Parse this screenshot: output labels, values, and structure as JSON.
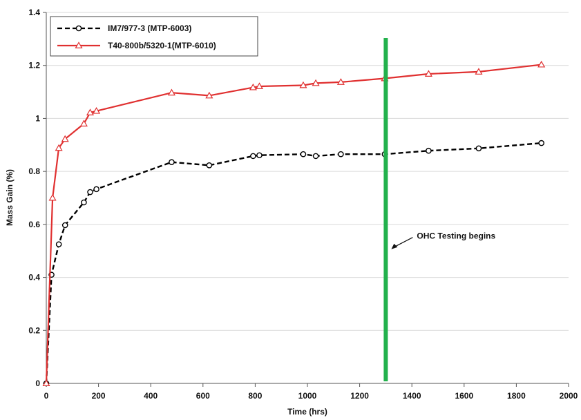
{
  "chart_data": {
    "type": "line",
    "xlabel": "Time (hrs)",
    "ylabel": "Mass Gain (%)",
    "xlim": [
      0,
      2000
    ],
    "ylim": [
      0,
      1.4
    ],
    "x_ticks": [
      0,
      200,
      400,
      600,
      800,
      1000,
      1200,
      1400,
      1600,
      1800,
      2000
    ],
    "y_ticks": [
      0,
      0.2,
      0.4,
      0.6,
      0.8,
      1,
      1.2,
      1.4
    ],
    "x_tick_labels": [
      "0",
      "200",
      "400",
      "600",
      "800",
      "1000",
      "1200",
      "1400",
      "1600",
      "1800",
      "2000"
    ],
    "y_tick_labels": [
      "0",
      "0.2",
      "0.4",
      "0.6",
      "0.8",
      "1",
      "1.2",
      "1.4"
    ],
    "grid": "horizontal",
    "legend_position": "top-left",
    "series": [
      {
        "name": "IM7/977-3 (MTP-6003)",
        "color": "#000000",
        "line_style": "dashed",
        "marker": "circle",
        "points": [
          [
            0,
            0
          ],
          [
            20,
            0.41
          ],
          [
            48,
            0.525
          ],
          [
            72,
            0.597
          ],
          [
            144,
            0.683
          ],
          [
            168,
            0.722
          ],
          [
            192,
            0.733
          ],
          [
            480,
            0.835
          ],
          [
            624,
            0.823
          ],
          [
            792,
            0.858
          ],
          [
            816,
            0.861
          ],
          [
            984,
            0.865
          ],
          [
            1032,
            0.858
          ],
          [
            1128,
            0.865
          ],
          [
            1296,
            0.865
          ],
          [
            1464,
            0.878
          ],
          [
            1656,
            0.887
          ],
          [
            1896,
            0.907
          ]
        ]
      },
      {
        "name": "T40-800b/5320-1(MTP-6010)",
        "color": "#e03030",
        "line_style": "solid",
        "marker": "triangle",
        "points": [
          [
            0,
            0
          ],
          [
            24,
            0.7
          ],
          [
            48,
            0.888
          ],
          [
            72,
            0.922
          ],
          [
            144,
            0.98
          ],
          [
            168,
            1.022
          ],
          [
            192,
            1.028
          ],
          [
            480,
            1.097
          ],
          [
            624,
            1.086
          ],
          [
            792,
            1.117
          ],
          [
            816,
            1.121
          ],
          [
            984,
            1.125
          ],
          [
            1032,
            1.133
          ],
          [
            1128,
            1.137
          ],
          [
            1296,
            1.151
          ],
          [
            1464,
            1.168
          ],
          [
            1656,
            1.176
          ],
          [
            1896,
            1.203
          ]
        ]
      }
    ],
    "annotations": [
      {
        "type": "vertical-line",
        "x": 1300,
        "color": "#22b14c",
        "label": "OHC Testing begins",
        "label_y": 0.53
      }
    ]
  }
}
